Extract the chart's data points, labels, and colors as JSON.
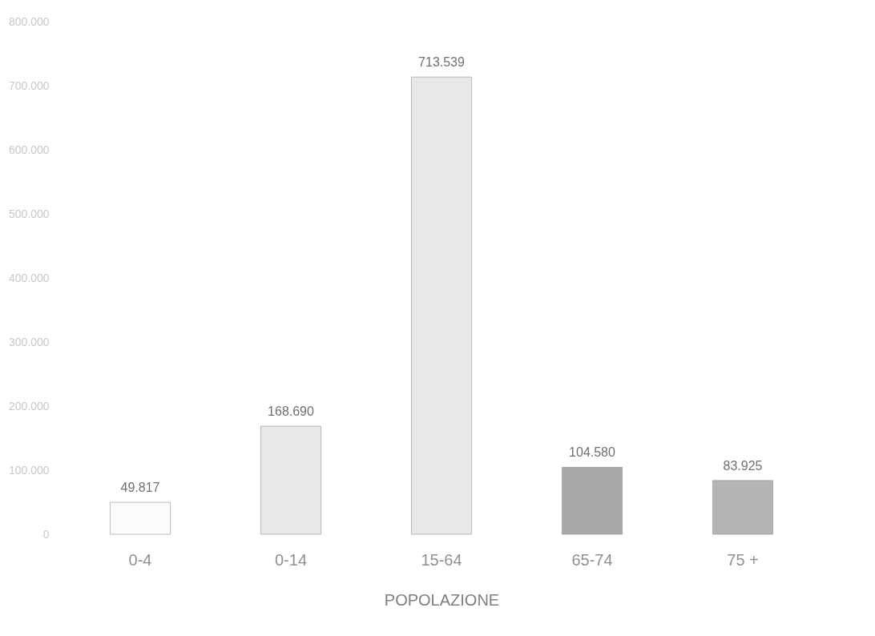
{
  "chart_data": {
    "type": "bar",
    "xlabel": "POPOLAZIONE",
    "categories": [
      "0-4",
      "0-14",
      "15-64",
      "65-74",
      "75 +"
    ],
    "values": [
      49817,
      168690,
      713539,
      104580,
      83925
    ],
    "colors": [
      "#fbfbfb",
      "#e8e8e8",
      "#e8e8e8",
      "#a8a8a8",
      "#b4b4b4"
    ],
    "value_labels": [
      "49.817",
      "168.690",
      "713.539",
      "104.580",
      "83.925"
    ],
    "ylim": [
      0,
      800000
    ],
    "yticks": [
      0,
      {
        "value": 100000,
        "label": "100.000"
      },
      {
        "value": 200000,
        "label": "200.000"
      },
      {
        "value": 300000,
        "label": "300.000"
      },
      {
        "value": 400000,
        "label": "400.000"
      },
      {
        "value": 500000,
        "label": "500.000"
      },
      {
        "value": 600000,
        "label": "600.000"
      },
      {
        "value": 700000,
        "label": "700.000"
      },
      {
        "value": 800000,
        "label": "800.000"
      }
    ],
    "grid": false
  }
}
